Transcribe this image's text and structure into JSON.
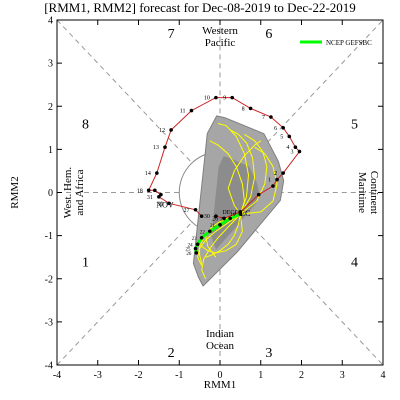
{
  "chart_data": {
    "type": "scatter",
    "title": "[RMM1, RMM2] forecast for Dec-08-2019 to Dec-22-2019",
    "xlabel": "RMM1",
    "ylabel": "RMM2",
    "xlim": [
      -4,
      4
    ],
    "ylim": [
      -4,
      4
    ],
    "xticks": [
      "-4",
      "-3",
      "-2",
      "-1",
      "0",
      "1",
      "2",
      "3",
      "4"
    ],
    "yticks": [
      "-4",
      "-3",
      "-2",
      "-1",
      "0",
      "1",
      "2",
      "3",
      "4"
    ],
    "phases": [
      {
        "label": "1",
        "x": -3.3,
        "y": -1.6
      },
      {
        "label": "2",
        "x": -1.2,
        "y": -3.7
      },
      {
        "label": "3",
        "x": 1.2,
        "y": -3.7
      },
      {
        "label": "4",
        "x": 3.3,
        "y": -1.6
      },
      {
        "label": "5",
        "x": 3.3,
        "y": 1.6
      },
      {
        "label": "6",
        "x": 1.2,
        "y": 3.7
      },
      {
        "label": "7",
        "x": -1.2,
        "y": 3.7
      },
      {
        "label": "8",
        "x": -3.3,
        "y": 1.6
      }
    ],
    "regions": {
      "top": [
        "Western",
        "Pacific"
      ],
      "bottom": [
        "Indian",
        "Ocean"
      ],
      "left": [
        "West. Hem.",
        "and Africa"
      ],
      "right": [
        "Maritime",
        "Continent"
      ]
    },
    "legend": {
      "label": "NCEP GEFSBC",
      "position": "top-right",
      "color": "#00ff00"
    },
    "observed": {
      "color": "#cc2222",
      "points": [
        {
          "x": -0.45,
          "y": -0.55,
          "label": ""
        },
        {
          "x": -0.6,
          "y": -0.4,
          "label": "27"
        },
        {
          "x": -1.25,
          "y": -0.25,
          "label": "30"
        },
        {
          "x": -1.5,
          "y": -0.1,
          "label": "31"
        },
        {
          "x": -1.45,
          "y": -0.05,
          "label": ""
        },
        {
          "x": -1.6,
          "y": 0.05,
          "label": ""
        },
        {
          "x": -1.75,
          "y": 0.05,
          "label": "18"
        },
        {
          "x": -1.55,
          "y": 0.45,
          "label": "14"
        },
        {
          "x": -1.35,
          "y": 1.05,
          "label": "13"
        },
        {
          "x": -1.2,
          "y": 1.45,
          "label": "12"
        },
        {
          "x": -0.7,
          "y": 1.9,
          "label": "11"
        },
        {
          "x": -0.1,
          "y": 2.2,
          "label": "10"
        },
        {
          "x": 0.3,
          "y": 2.2,
          "label": "9"
        },
        {
          "x": 0.75,
          "y": 1.95,
          "label": "8"
        },
        {
          "x": 1.25,
          "y": 1.75,
          "label": "7"
        },
        {
          "x": 1.55,
          "y": 1.5,
          "label": "6"
        },
        {
          "x": 1.7,
          "y": 1.3,
          "label": "5"
        },
        {
          "x": 1.85,
          "y": 1.05,
          "label": "4"
        },
        {
          "x": 1.95,
          "y": 0.95,
          "label": "3"
        },
        {
          "x": 1.55,
          "y": 0.45,
          "label": "2"
        },
        {
          "x": 1.4,
          "y": 0.3,
          "label": "1"
        },
        {
          "x": 1.3,
          "y": 0.15,
          "label": ""
        },
        {
          "x": 0.95,
          "y": -0.05,
          "label": ""
        },
        {
          "x": 0.5,
          "y": -0.45,
          "label": "DEC"
        },
        {
          "x": 0.1,
          "y": -0.6,
          "label": "26"
        },
        {
          "x": -0.1,
          "y": -0.55,
          "label": "30"
        }
      ],
      "month_labels": [
        {
          "text": "NOV",
          "x": -1.35,
          "y": -0.35
        },
        {
          "text": "DEC",
          "x": 0.55,
          "y": -0.55
        }
      ]
    },
    "ensemble_mean": {
      "points": [
        {
          "x": 0.5,
          "y": -0.5
        },
        {
          "x": 0.25,
          "y": -0.6
        },
        {
          "x": 0.0,
          "y": -0.75
        },
        {
          "x": -0.25,
          "y": -0.9
        },
        {
          "x": -0.45,
          "y": -1.05
        },
        {
          "x": -0.55,
          "y": -1.2
        },
        {
          "x": -0.6,
          "y": -1.3
        },
        {
          "x": -0.58,
          "y": -1.4
        }
      ],
      "labels": [
        "19",
        "20",
        "21",
        "22",
        "23",
        "24",
        "25",
        "26"
      ]
    },
    "ensemble_members": [
      {
        "x": [
          0.5,
          0.2,
          -0.1,
          -0.35,
          -0.5,
          -0.55,
          -0.45
        ],
        "y": [
          -0.5,
          -0.7,
          -0.9,
          -1.1,
          -1.3,
          -1.5,
          -1.7
        ]
      },
      {
        "x": [
          0.5,
          0.3,
          0.05,
          -0.2,
          -0.35,
          -0.3,
          -0.1
        ],
        "y": [
          -0.5,
          -0.55,
          -0.65,
          -0.8,
          -1.0,
          -1.25,
          -1.5
        ]
      },
      {
        "x": [
          0.5,
          0.6,
          0.55,
          0.4,
          0.2,
          -0.05,
          -0.25
        ],
        "y": [
          -0.5,
          -0.2,
          0.2,
          0.6,
          0.9,
          1.1,
          1.2
        ]
      },
      {
        "x": [
          0.5,
          0.75,
          0.85,
          0.8,
          0.65,
          0.45,
          0.25
        ],
        "y": [
          -0.5,
          -0.1,
          0.35,
          0.8,
          1.15,
          1.35,
          1.45
        ]
      },
      {
        "x": [
          0.5,
          0.9,
          1.1,
          1.15,
          1.05,
          0.85,
          0.6
        ],
        "y": [
          -0.5,
          -0.2,
          0.2,
          0.6,
          0.95,
          1.2,
          1.35
        ]
      },
      {
        "x": [
          0.5,
          0.2,
          -0.05,
          -0.25,
          -0.4,
          -0.45,
          -0.35
        ],
        "y": [
          -0.5,
          -0.8,
          -1.05,
          -1.3,
          -1.55,
          -1.8,
          -2.0
        ]
      },
      {
        "x": [
          0.5,
          0.45,
          0.35,
          0.2,
          0.0,
          -0.2,
          -0.35
        ],
        "y": [
          -0.5,
          -0.75,
          -1.0,
          -1.2,
          -1.35,
          -1.45,
          -1.5
        ]
      },
      {
        "x": [
          0.5,
          0.35,
          0.2,
          0.35,
          0.6,
          0.85,
          1.0
        ],
        "y": [
          -0.5,
          -0.3,
          0.1,
          0.5,
          0.85,
          1.1,
          1.2
        ]
      },
      {
        "x": [
          0.5,
          0.55,
          0.4,
          0.15,
          -0.1,
          -0.3,
          -0.45
        ],
        "y": [
          -0.5,
          -0.9,
          -1.2,
          -1.35,
          -1.4,
          -1.35,
          -1.25
        ]
      },
      {
        "x": [
          0.5,
          1.0,
          1.3,
          1.4,
          1.3,
          1.1,
          0.85
        ],
        "y": [
          -0.5,
          -0.45,
          -0.2,
          0.2,
          0.6,
          0.9,
          1.05
        ]
      },
      {
        "x": [
          0.5,
          0.1,
          -0.2,
          -0.4,
          -0.5,
          -0.5,
          -0.45
        ],
        "y": [
          -0.5,
          -0.65,
          -0.85,
          -1.05,
          -1.25,
          -1.45,
          -1.65
        ]
      },
      {
        "x": [
          0.5,
          0.65,
          0.7,
          0.6,
          0.4,
          0.15,
          -0.05
        ],
        "y": [
          -0.5,
          -0.1,
          0.4,
          0.9,
          1.3,
          1.55,
          1.6
        ]
      }
    ]
  }
}
